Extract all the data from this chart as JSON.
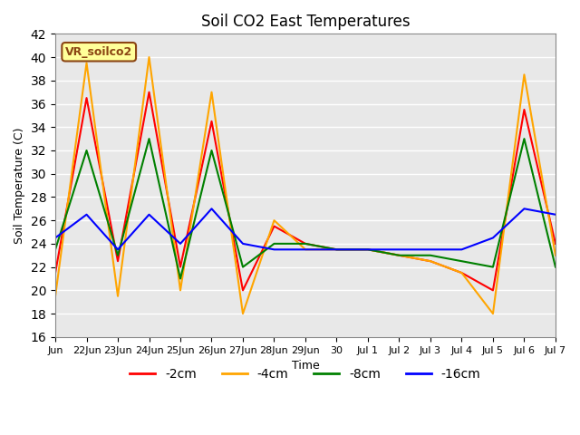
{
  "title": "Soil CO2 East Temperatures",
  "ylabel": "Soil Temperature (C)",
  "xlabel": "Time",
  "ylim": [
    16,
    42
  ],
  "annotation_text": "VR_soilco2",
  "annotation_color": "#8B4513",
  "annotation_bg": "#FFFF99",
  "background_color": "#E8E8E8",
  "grid_color": "white",
  "legend_labels": [
    "-2cm",
    "-4cm",
    "-8cm",
    "-16cm"
  ],
  "line_colors": [
    "red",
    "orange",
    "green",
    "blue"
  ],
  "tick_labels": [
    "Jun",
    "22Jun",
    "23Jun",
    "24Jun",
    "25Jun",
    "26Jun",
    "27Jun",
    "28Jun",
    "29Jun",
    "30",
    "Jul 1",
    "Jul 2",
    "Jul 3",
    "Jul 4",
    "Jul 5",
    "Jul 6",
    "Jul 7"
  ],
  "data_2cm": [
    21.5,
    36.5,
    22.5,
    37.0,
    22.0,
    34.5,
    20.0,
    25.5,
    24.0,
    23.5,
    23.5,
    23.0,
    22.5,
    21.5,
    20.0,
    35.5,
    24.0
  ],
  "data_4cm": [
    19.5,
    39.5,
    19.5,
    40.0,
    20.0,
    37.0,
    18.0,
    26.0,
    23.5,
    23.5,
    23.5,
    23.0,
    22.5,
    21.5,
    18.0,
    38.5,
    23.0
  ],
  "data_8cm": [
    23.5,
    32.0,
    23.0,
    33.0,
    21.0,
    32.0,
    22.0,
    24.0,
    24.0,
    23.5,
    23.5,
    23.0,
    23.0,
    22.5,
    22.0,
    33.0,
    22.0
  ],
  "data_16cm": [
    24.5,
    26.5,
    23.5,
    26.5,
    24.0,
    27.0,
    24.0,
    23.5,
    23.5,
    23.5,
    23.5,
    23.5,
    23.5,
    23.5,
    24.5,
    27.0,
    26.5
  ]
}
